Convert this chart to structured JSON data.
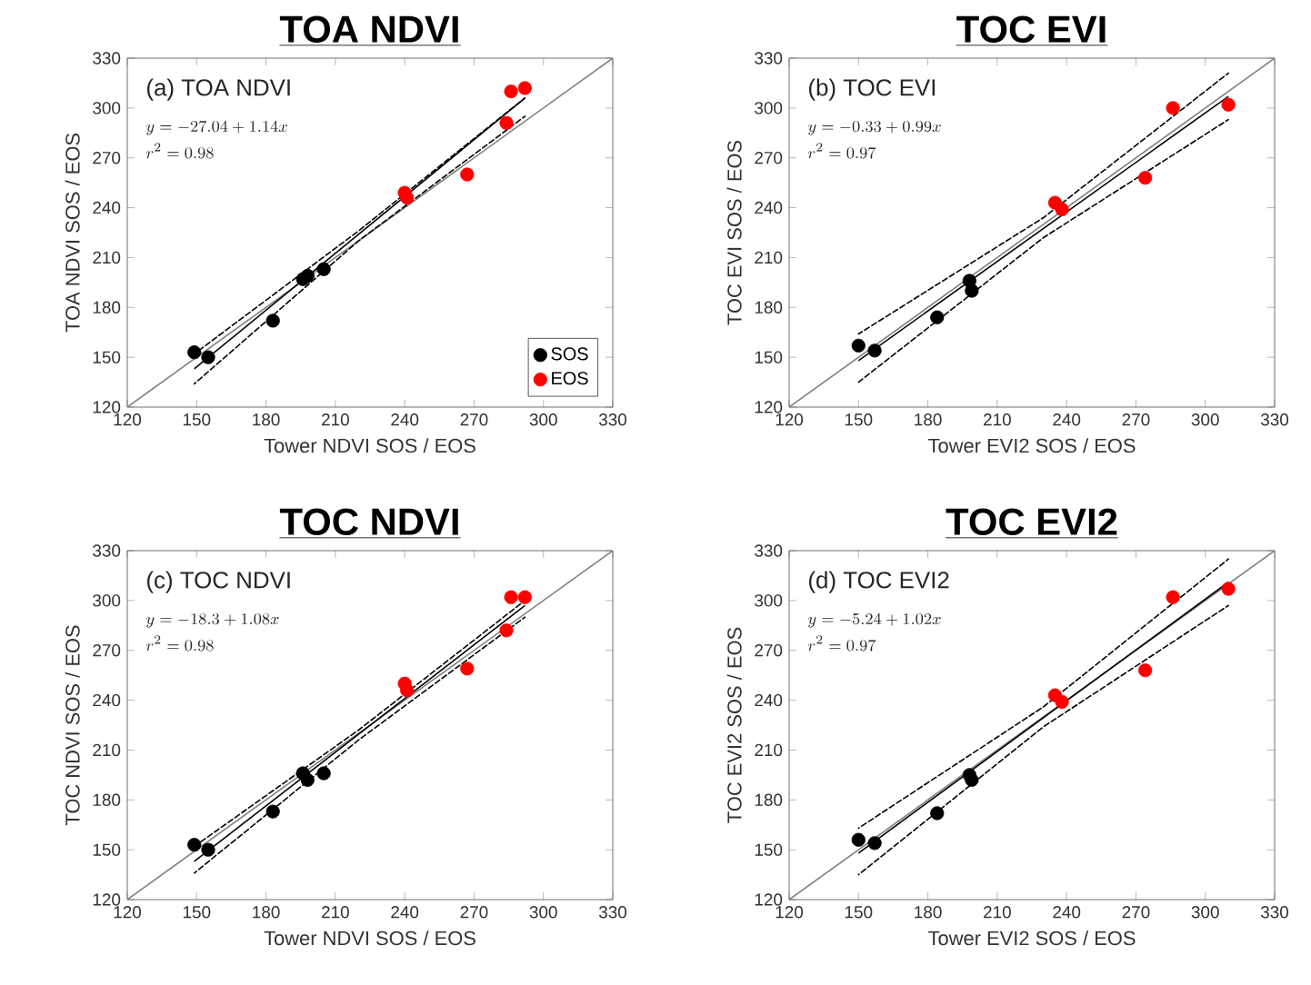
{
  "chart_data": [
    {
      "type": "scatter",
      "title": "TOA NDVI",
      "xlabel": "Tower NDVI SOS / EOS",
      "ylabel": "TOA NDVI SOS / EOS",
      "annotations": [
        "(a) TOA NDVI",
        "y = -27.04 + 1.14x",
        "r^{2} = 0.98"
      ],
      "xlim": [
        120,
        330
      ],
      "ylim": [
        120,
        330
      ],
      "xticks": [
        120,
        150,
        180,
        210,
        240,
        270,
        300,
        330
      ],
      "yticks": [
        120,
        150,
        180,
        210,
        240,
        270,
        300,
        330
      ],
      "legend": "bottom right",
      "grid": false,
      "series": [
        {
          "name": "SOS",
          "marker": "circle",
          "color": "#000000",
          "x": [
            149,
            155,
            183,
            196,
            198,
            205
          ],
          "values": [
            153,
            150,
            172,
            197,
            199,
            203
          ]
        },
        {
          "name": "EOS",
          "marker": "circle",
          "color": "#ff0000",
          "x": [
            240,
            241,
            267,
            284,
            286,
            292
          ],
          "values": [
            249,
            246,
            260,
            291,
            310,
            312
          ]
        },
        {
          "type": "line",
          "marker": "none",
          "line_style": "solid",
          "color": "#808080",
          "x": [
            120,
            330
          ],
          "values": [
            120,
            330
          ]
        },
        {
          "type": "line",
          "marker": "none",
          "line_style": "solid",
          "color": "#000000",
          "x": [
            149,
            292
          ],
          "values": [
            143,
            306
          ]
        },
        {
          "type": "line",
          "marker": "none",
          "line_style": "dashed",
          "color": "#000000",
          "x": [
            149,
            220,
            292
          ],
          "values": [
            152,
            226,
            306
          ]
        },
        {
          "type": "line",
          "marker": "none",
          "line_style": "dashed",
          "color": "#000000",
          "x": [
            149,
            220,
            292
          ],
          "values": [
            134,
            220,
            295
          ]
        }
      ]
    },
    {
      "type": "scatter",
      "title": "TOC EVI",
      "xlabel": "Tower EVI2 SOS / EOS",
      "ylabel": "TOC EVI SOS / EOS",
      "annotations": [
        "(b) TOC EVI",
        "y = -0.33 + 0.99x",
        "r^{2} = 0.97"
      ],
      "xlim": [
        120,
        330
      ],
      "ylim": [
        120,
        330
      ],
      "xticks": [
        120,
        150,
        180,
        210,
        240,
        270,
        300,
        330
      ],
      "yticks": [
        120,
        150,
        180,
        210,
        240,
        270,
        300,
        330
      ],
      "legend": false,
      "grid": false,
      "series": [
        {
          "marker": "circle",
          "color": "#000000",
          "x": [
            150,
            157,
            184,
            198,
            199
          ],
          "values": [
            157,
            154,
            174,
            196,
            190
          ]
        },
        {
          "marker": "circle",
          "color": "#ff0000",
          "x": [
            235,
            238,
            274,
            286,
            310
          ],
          "values": [
            243,
            239,
            258,
            300,
            302
          ]
        },
        {
          "type": "line",
          "marker": "none",
          "line_style": "solid",
          "color": "#808080",
          "x": [
            120,
            330
          ],
          "values": [
            120,
            330
          ]
        },
        {
          "type": "line",
          "marker": "none",
          "line_style": "solid",
          "color": "#000000",
          "x": [
            150,
            310
          ],
          "values": [
            148,
            307
          ]
        },
        {
          "type": "line",
          "marker": "none",
          "line_style": "dashed",
          "color": "#000000",
          "x": [
            150,
            230,
            310
          ],
          "values": [
            164,
            234,
            321
          ]
        },
        {
          "type": "line",
          "marker": "none",
          "line_style": "dashed",
          "color": "#000000",
          "x": [
            150,
            230,
            310
          ],
          "values": [
            135,
            222,
            293
          ]
        }
      ]
    },
    {
      "type": "scatter",
      "title": "TOC NDVI",
      "xlabel": "Tower NDVI SOS / EOS",
      "ylabel": "TOC NDVI SOS / EOS",
      "annotations": [
        "(c) TOC NDVI",
        "y = -18.3 + 1.08x",
        "r^{2} = 0.98"
      ],
      "xlim": [
        120,
        330
      ],
      "ylim": [
        120,
        330
      ],
      "xticks": [
        120,
        150,
        180,
        210,
        240,
        270,
        300,
        330
      ],
      "yticks": [
        120,
        150,
        180,
        210,
        240,
        270,
        300,
        330
      ],
      "legend": false,
      "grid": false,
      "series": [
        {
          "marker": "circle",
          "color": "#000000",
          "x": [
            149,
            155,
            183,
            196,
            198,
            205
          ],
          "values": [
            153,
            150,
            173,
            196,
            192,
            196
          ]
        },
        {
          "marker": "circle",
          "color": "#ff0000",
          "x": [
            240,
            241,
            267,
            284,
            286,
            292
          ],
          "values": [
            250,
            246,
            259,
            282,
            302,
            302
          ]
        },
        {
          "type": "line",
          "marker": "none",
          "line_style": "solid",
          "color": "#808080",
          "x": [
            120,
            330
          ],
          "values": [
            120,
            330
          ]
        },
        {
          "type": "line",
          "marker": "none",
          "line_style": "solid",
          "color": "#000000",
          "x": [
            149,
            292
          ],
          "values": [
            143,
            297
          ]
        },
        {
          "type": "line",
          "marker": "none",
          "line_style": "dashed",
          "color": "#000000",
          "x": [
            149,
            220,
            292
          ],
          "values": [
            152,
            222,
            300
          ]
        },
        {
          "type": "line",
          "marker": "none",
          "line_style": "dashed",
          "color": "#000000",
          "x": [
            149,
            220,
            292
          ],
          "values": [
            136,
            216,
            290
          ]
        }
      ]
    },
    {
      "type": "scatter",
      "title": "TOC EVI2",
      "xlabel": "Tower EVI2 SOS / EOS",
      "ylabel": "TOC EVI2 SOS / EOS",
      "annotations": [
        "(d) TOC EVI2",
        "y = -5.24 + 1.02x",
        "r^{2} = 0.97"
      ],
      "xlim": [
        120,
        330
      ],
      "ylim": [
        120,
        330
      ],
      "xticks": [
        120,
        150,
        180,
        210,
        240,
        270,
        300,
        330
      ],
      "yticks": [
        120,
        150,
        180,
        210,
        240,
        270,
        300,
        330
      ],
      "legend": false,
      "grid": false,
      "series": [
        {
          "marker": "circle",
          "color": "#000000",
          "x": [
            150,
            157,
            184,
            198,
            199
          ],
          "values": [
            156,
            154,
            172,
            195,
            192
          ]
        },
        {
          "marker": "circle",
          "color": "#ff0000",
          "x": [
            235,
            238,
            274,
            286,
            310
          ],
          "values": [
            243,
            239,
            258,
            302,
            307
          ]
        },
        {
          "type": "line",
          "marker": "none",
          "line_style": "solid",
          "color": "#808080",
          "x": [
            120,
            330
          ],
          "values": [
            120,
            330
          ]
        },
        {
          "type": "line",
          "marker": "none",
          "line_style": "solid",
          "color": "#000000",
          "x": [
            150,
            310
          ],
          "values": [
            148,
            311
          ]
        },
        {
          "type": "line",
          "marker": "none",
          "line_style": "dashed",
          "color": "#000000",
          "x": [
            150,
            230,
            310
          ],
          "values": [
            163,
            236,
            325
          ]
        },
        {
          "type": "line",
          "marker": "none",
          "line_style": "dashed",
          "color": "#000000",
          "x": [
            150,
            230,
            310
          ],
          "values": [
            135,
            224,
            297
          ]
        }
      ]
    }
  ]
}
